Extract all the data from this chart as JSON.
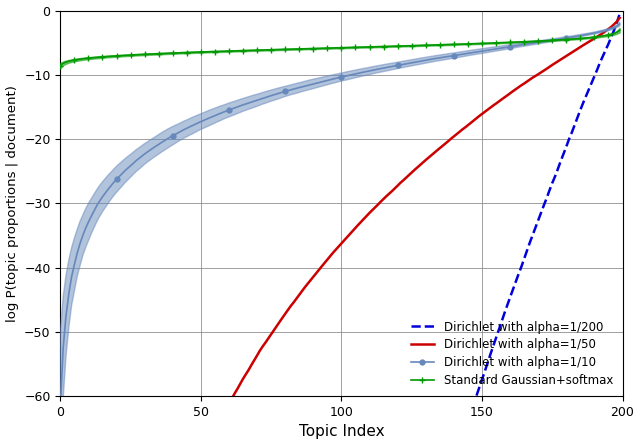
{
  "title": "",
  "xlabel": "Topic Index",
  "ylabel": "log P(topic proportions | document)",
  "xlim": [
    0,
    200
  ],
  "ylim": [
    -60,
    0
  ],
  "yticks": [
    0,
    -10,
    -20,
    -30,
    -40,
    -50,
    -60
  ],
  "xticks": [
    0,
    50,
    100,
    150,
    200
  ],
  "n_topics": 200,
  "legend_labels": [
    "Standard Gaussian+softmax",
    "Dirichlet with alpha=1/10",
    "Dirichlet with alpha=1/50",
    "Dirichlet with alpha=1/200"
  ],
  "colors": {
    "gaussian": "#009900",
    "dirichlet_10": "#6688bb",
    "dirichlet_50": "#cc0000",
    "dirichlet_200": "#0000dd"
  },
  "grid_color": "#888888",
  "background_color": "#ffffff"
}
